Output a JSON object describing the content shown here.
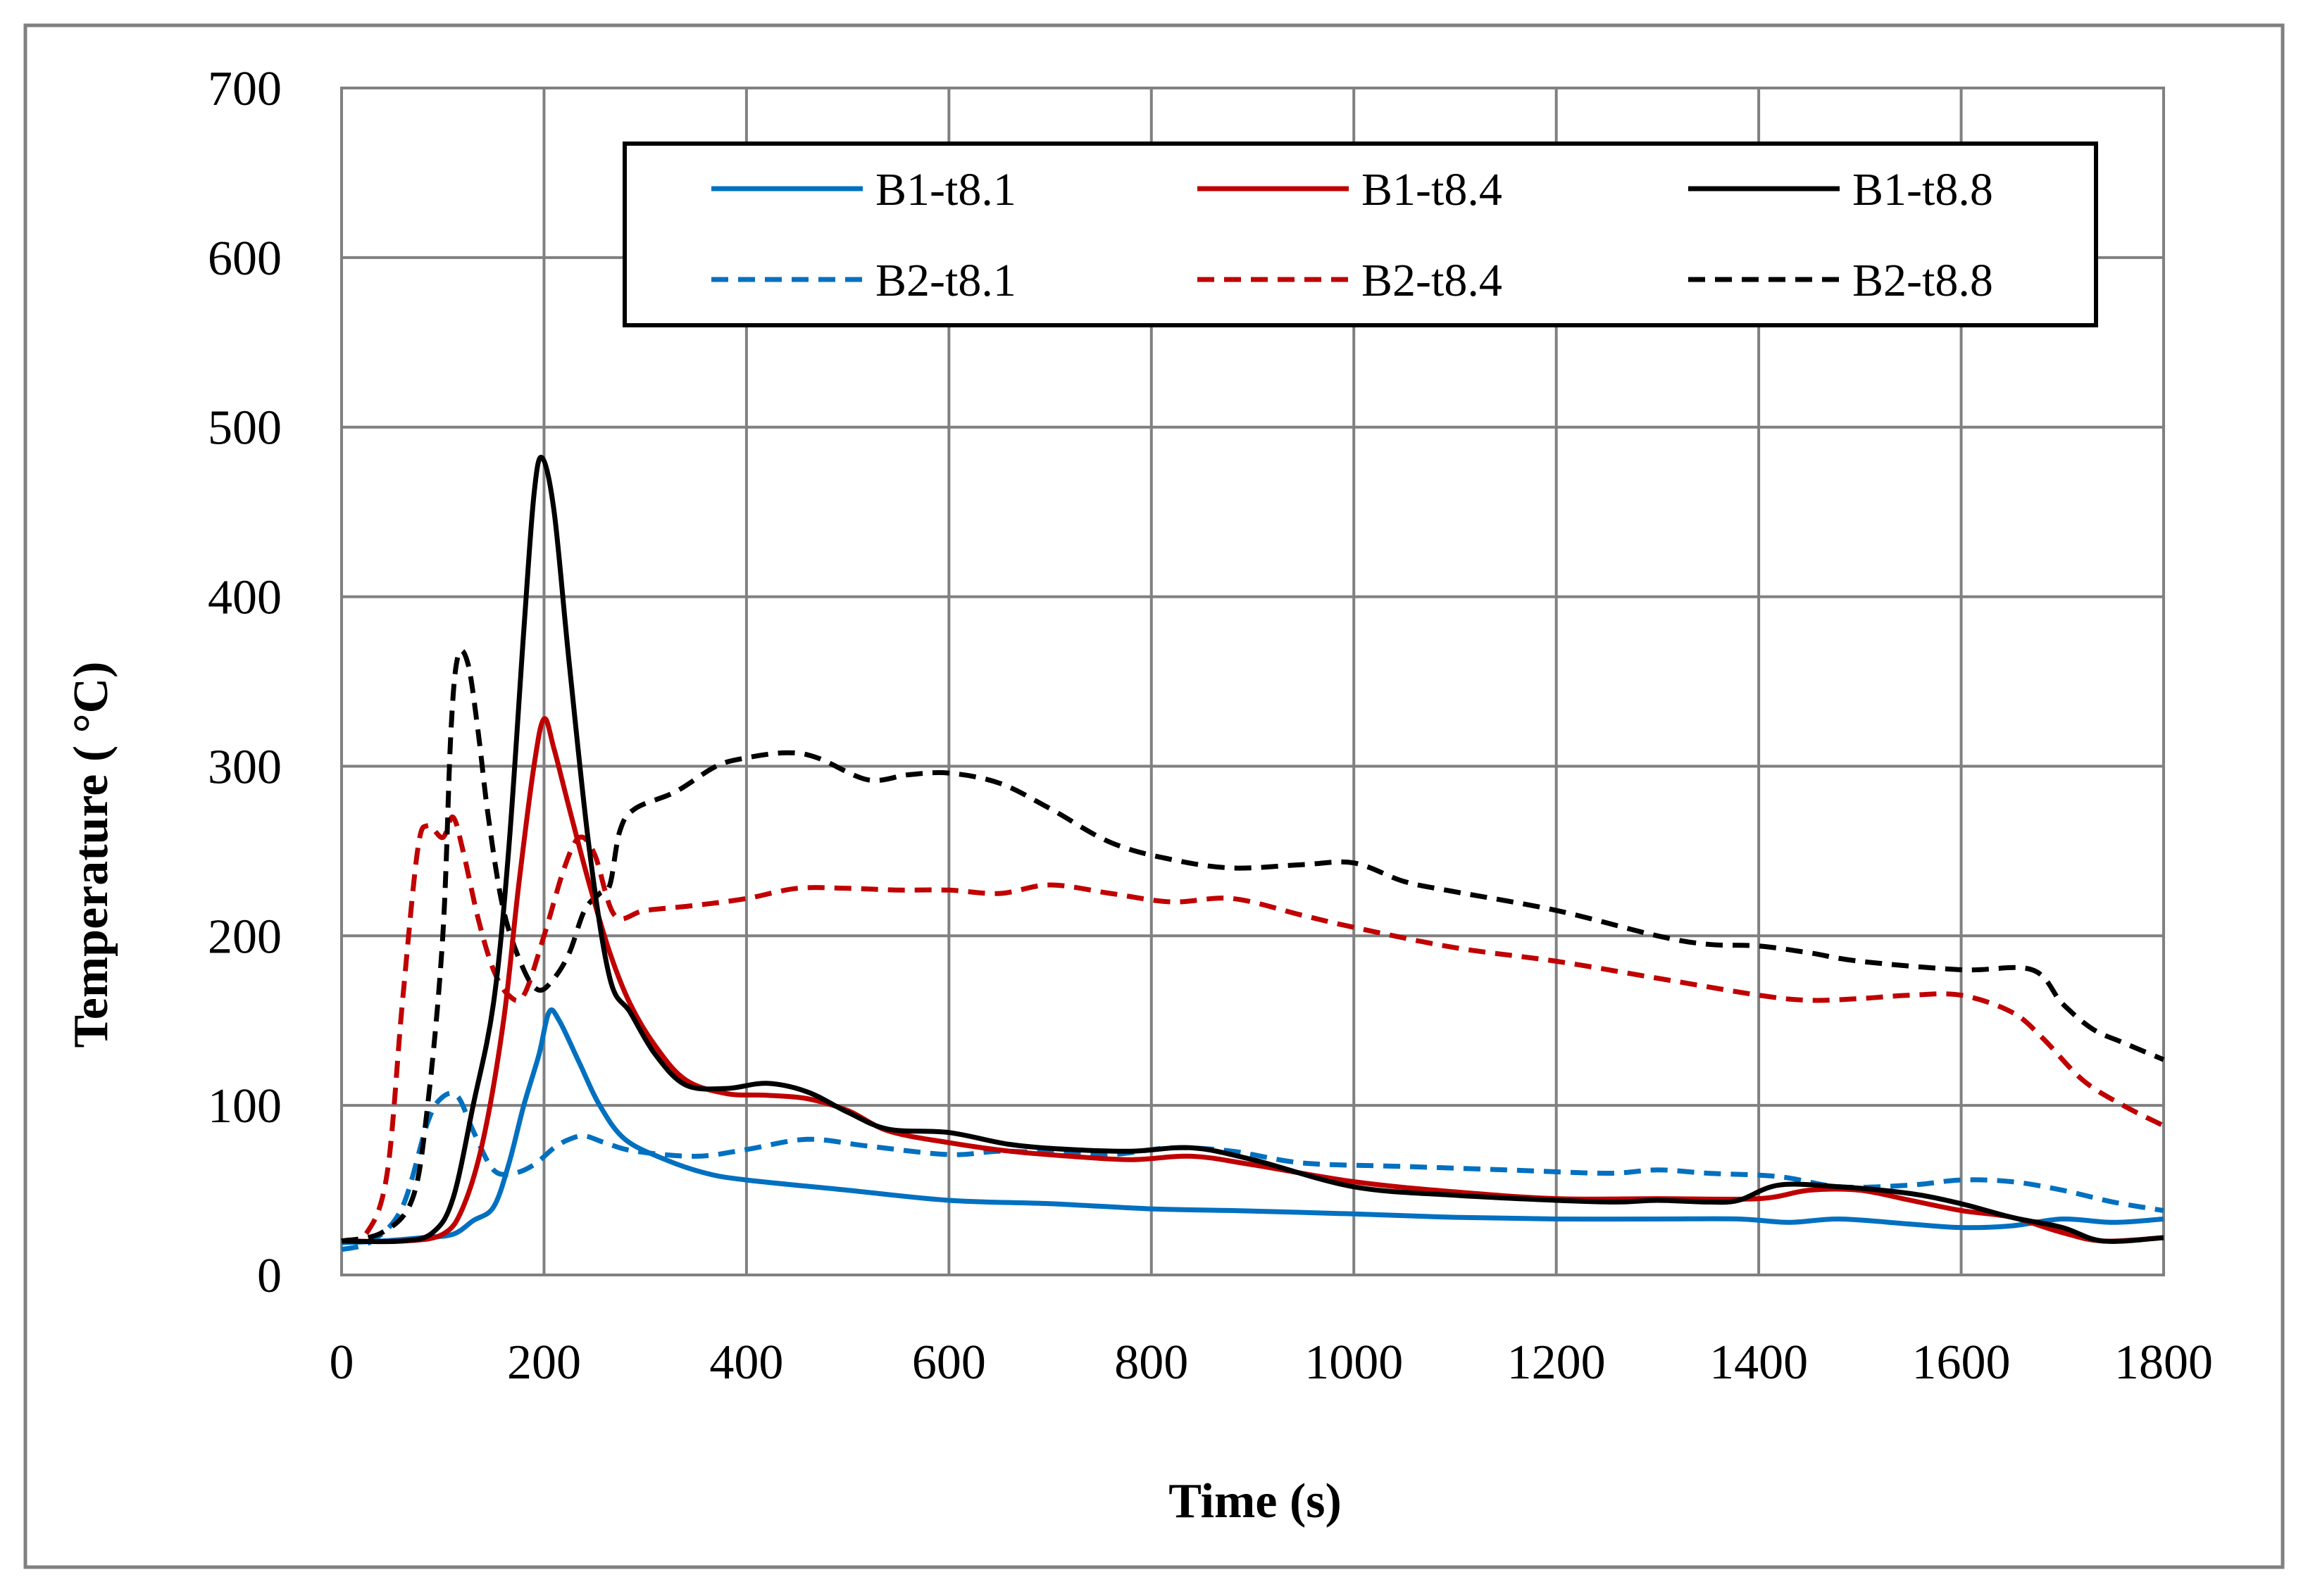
{
  "chart_data": {
    "type": "line",
    "title": "",
    "xlabel": "Time (s)",
    "ylabel": "Temperature ( °C)",
    "xlim": [
      0,
      1800
    ],
    "ylim": [
      0,
      700
    ],
    "xticks": [
      0,
      200,
      400,
      600,
      800,
      1000,
      1200,
      1400,
      1600,
      1800
    ],
    "yticks": [
      0,
      100,
      200,
      300,
      400,
      500,
      600,
      700
    ],
    "grid": true,
    "legend_position": "top-right",
    "series": [
      {
        "name": "B1-t8.1",
        "color": "#0070C0",
        "dash": "solid",
        "x": [
          0,
          40,
          80,
          110,
          130,
          150,
          165,
          180,
          195,
          205,
          215,
          235,
          255,
          280,
          320,
          360,
          400,
          500,
          600,
          700,
          800,
          880,
          1000,
          1100,
          1200,
          1300,
          1380,
          1430,
          1480,
          1550,
          1600,
          1650,
          1700,
          1750,
          1800
        ],
        "values": [
          19,
          20,
          22,
          24,
          32,
          40,
          65,
          100,
          130,
          155,
          150,
          125,
          100,
          80,
          68,
          60,
          56,
          50,
          44,
          42,
          39,
          38,
          36,
          34,
          33,
          33,
          33,
          31,
          33,
          30,
          28,
          29,
          33,
          31,
          33
        ]
      },
      {
        "name": "B1-t8.4",
        "color": "#C00000",
        "dash": "solid",
        "x": [
          0,
          60,
          100,
          120,
          140,
          160,
          175,
          190,
          200,
          210,
          225,
          245,
          265,
          285,
          310,
          340,
          380,
          420,
          460,
          500,
          540,
          600,
          660,
          720,
          780,
          840,
          900,
          1000,
          1100,
          1200,
          1300,
          1400,
          1450,
          1500,
          1550,
          1600,
          1650,
          1700,
          1740,
          1800
        ],
        "values": [
          20,
          20,
          24,
          40,
          80,
          150,
          230,
          300,
          328,
          310,
          275,
          230,
          190,
          160,
          135,
          115,
          107,
          106,
          104,
          97,
          85,
          78,
          73,
          70,
          68,
          70,
          65,
          55,
          49,
          45,
          45,
          45,
          50,
          50,
          44,
          38,
          34,
          25,
          20,
          22
        ]
      },
      {
        "name": "B1-t8.8",
        "color": "#000000",
        "dash": "solid",
        "x": [
          0,
          60,
          90,
          110,
          130,
          150,
          165,
          180,
          190,
          198,
          210,
          225,
          245,
          265,
          285,
          310,
          340,
          380,
          420,
          460,
          500,
          540,
          600,
          660,
          720,
          780,
          840,
          900,
          1000,
          1100,
          1200,
          1260,
          1300,
          1350,
          1380,
          1420,
          1480,
          1550,
          1600,
          1650,
          1700,
          1740,
          1800
        ],
        "values": [
          20,
          20,
          25,
          45,
          100,
          160,
          250,
          380,
          460,
          482,
          450,
          360,
          250,
          175,
          155,
          130,
          112,
          110,
          113,
          108,
          96,
          86,
          84,
          77,
          74,
          73,
          75,
          68,
          52,
          47,
          44,
          43,
          44,
          43,
          44,
          53,
          52,
          48,
          42,
          34,
          28,
          20,
          22
        ]
      },
      {
        "name": "B2-t8.1",
        "color": "#0070C0",
        "dash": "dashed",
        "x": [
          0,
          30,
          60,
          85,
          100,
          115,
          130,
          150,
          170,
          190,
          210,
          225,
          240,
          260,
          290,
          350,
          400,
          460,
          520,
          600,
          650,
          700,
          760,
          820,
          880,
          950,
          1050,
          1150,
          1250,
          1300,
          1350,
          1420,
          1480,
          1550,
          1600,
          1650,
          1700,
          1750,
          1800
        ],
        "values": [
          15,
          20,
          40,
          90,
          105,
          105,
          85,
          62,
          60,
          65,
          75,
          80,
          82,
          78,
          73,
          70,
          74,
          80,
          76,
          71,
          73,
          72,
          71,
          75,
          73,
          66,
          64,
          62,
          60,
          62,
          60,
          58,
          52,
          53,
          56,
          55,
          50,
          43,
          38
        ]
      },
      {
        "name": "B2-t8.4",
        "color": "#C00000",
        "dash": "dashed",
        "x": [
          0,
          25,
          45,
          60,
          75,
          85,
          100,
          110,
          120,
          135,
          150,
          165,
          180,
          200,
          220,
          235,
          250,
          270,
          300,
          350,
          400,
          450,
          500,
          550,
          600,
          650,
          700,
          760,
          820,
          880,
          950,
          1000,
          1100,
          1200,
          1300,
          1400,
          1450,
          1500,
          1550,
          1600,
          1650,
          1680,
          1720,
          1760,
          1800
        ],
        "values": [
          20,
          25,
          60,
          160,
          250,
          265,
          258,
          270,
          250,
          210,
          180,
          165,
          165,
          200,
          240,
          258,
          248,
          212,
          215,
          218,
          222,
          228,
          228,
          227,
          227,
          225,
          230,
          225,
          220,
          222,
          212,
          205,
          193,
          185,
          175,
          165,
          162,
          163,
          165,
          165,
          155,
          140,
          115,
          100,
          88
        ]
      },
      {
        "name": "B2-t8.8",
        "color": "#000000",
        "dash": "dashed",
        "x": [
          0,
          40,
          70,
          85,
          100,
          108,
          115,
          125,
          135,
          145,
          160,
          180,
          195,
          210,
          225,
          240,
          255,
          265,
          275,
          290,
          330,
          370,
          400,
          440,
          470,
          520,
          560,
          600,
          650,
          700,
          760,
          820,
          880,
          950,
          1000,
          1050,
          1100,
          1200,
          1300,
          1350,
          1400,
          1450,
          1500,
          1600,
          1670,
          1700,
          1730,
          1760,
          1800
        ],
        "values": [
          20,
          25,
          45,
          100,
          200,
          320,
          365,
          360,
          320,
          270,
          215,
          180,
          168,
          175,
          190,
          215,
          225,
          230,
          262,
          275,
          285,
          300,
          305,
          308,
          305,
          292,
          295,
          296,
          290,
          275,
          255,
          245,
          240,
          242,
          243,
          232,
          226,
          215,
          200,
          195,
          194,
          190,
          185,
          180,
          180,
          160,
          145,
          137,
          127
        ]
      }
    ]
  }
}
